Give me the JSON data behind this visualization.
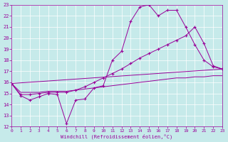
{
  "xlabel": "Windchill (Refroidissement éolien,°C)",
  "background_color": "#c6eaea",
  "grid_color": "#ffffff",
  "line_color": "#990099",
  "xlim": [
    0,
    23
  ],
  "ylim": [
    12,
    23
  ],
  "xticks": [
    0,
    1,
    2,
    3,
    4,
    5,
    6,
    7,
    8,
    9,
    10,
    11,
    12,
    13,
    14,
    15,
    16,
    17,
    18,
    19,
    20,
    21,
    22,
    23
  ],
  "yticks": [
    12,
    13,
    14,
    15,
    16,
    17,
    18,
    19,
    20,
    21,
    22,
    23
  ],
  "line1_x": [
    0,
    1,
    2,
    3,
    4,
    5,
    6,
    7,
    8,
    9,
    10,
    11,
    12,
    13,
    14,
    15,
    16,
    17,
    18,
    19,
    20,
    21,
    22,
    23
  ],
  "line1_y": [
    15.9,
    14.8,
    14.4,
    14.7,
    15.0,
    14.9,
    12.3,
    14.4,
    14.5,
    15.5,
    15.7,
    18.0,
    18.8,
    21.5,
    22.8,
    23.0,
    22.0,
    22.5,
    22.5,
    21.0,
    19.4,
    18.0,
    17.4,
    17.2
  ],
  "line2_x": [
    0,
    1,
    2,
    3,
    4,
    5,
    6,
    7,
    8,
    9,
    10,
    11,
    12,
    13,
    14,
    15,
    16,
    17,
    18,
    19,
    20,
    21,
    22,
    23
  ],
  "line2_y": [
    15.9,
    14.9,
    14.9,
    15.0,
    15.1,
    15.1,
    15.1,
    15.3,
    15.6,
    16.0,
    16.4,
    16.8,
    17.2,
    17.7,
    18.2,
    18.6,
    19.0,
    19.4,
    19.8,
    20.2,
    21.0,
    19.5,
    17.5,
    17.2
  ],
  "line3_x": [
    0,
    23
  ],
  "line3_y": [
    15.9,
    17.2
  ],
  "line4_x": [
    0,
    1,
    2,
    3,
    4,
    5,
    6,
    7,
    8,
    9,
    10,
    11,
    12,
    13,
    14,
    15,
    16,
    17,
    18,
    19,
    20,
    21,
    22,
    23
  ],
  "line4_y": [
    15.9,
    15.1,
    15.1,
    15.1,
    15.2,
    15.2,
    15.2,
    15.3,
    15.4,
    15.5,
    15.6,
    15.7,
    15.8,
    15.9,
    16.0,
    16.1,
    16.2,
    16.3,
    16.4,
    16.4,
    16.5,
    16.5,
    16.6,
    16.6
  ]
}
